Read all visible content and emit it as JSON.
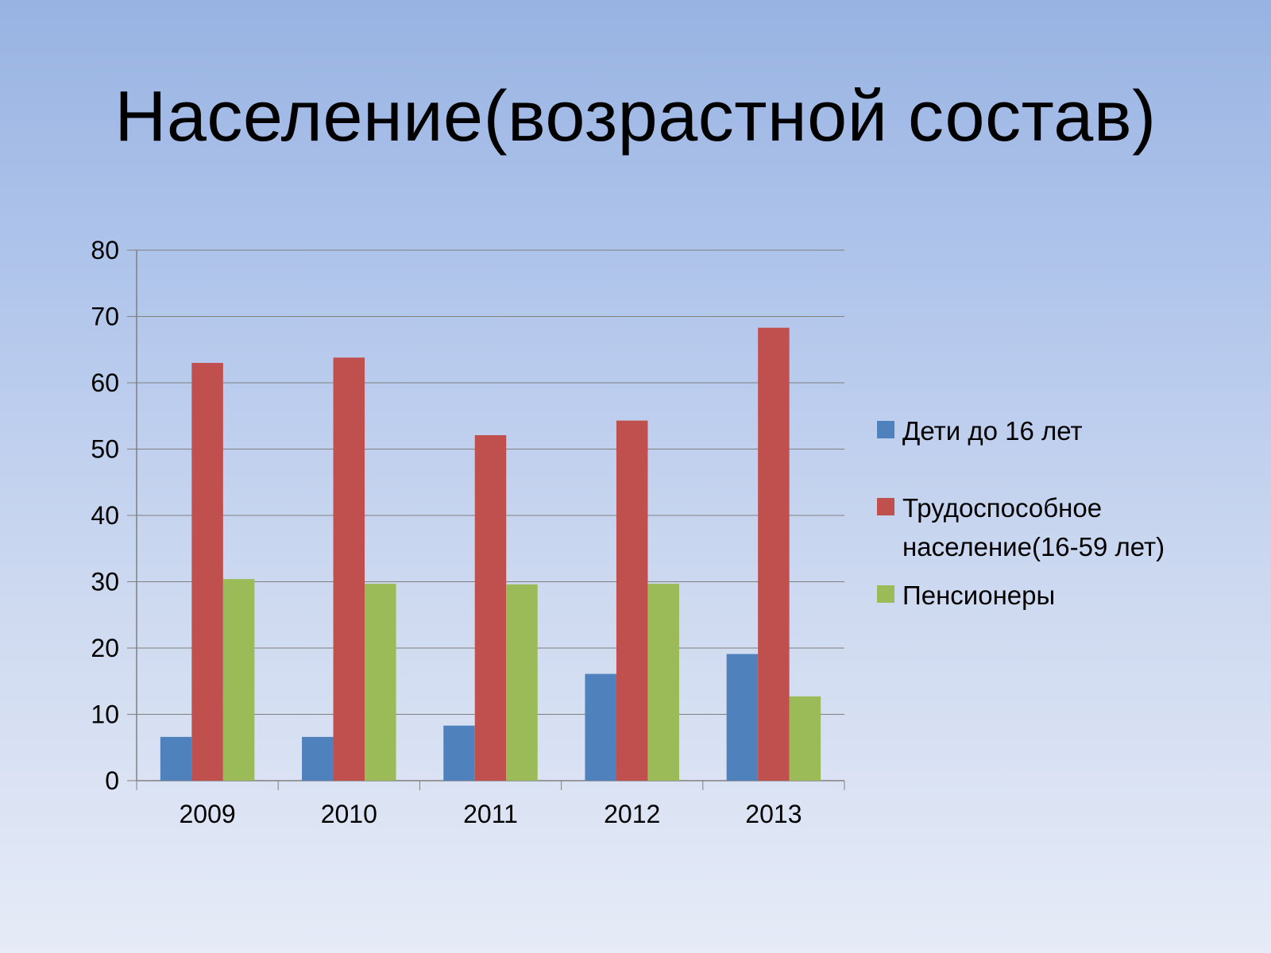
{
  "slide": {
    "title": "Население(возрастной состав)"
  },
  "chart_data": {
    "type": "bar",
    "categories": [
      "2009",
      "2010",
      "2011",
      "2012",
      "2013"
    ],
    "series": [
      {
        "name": "Дети до 16 лет",
        "color": "#4f81bd",
        "values": [
          6.6,
          6.6,
          8.3,
          16.1,
          19.1
        ]
      },
      {
        "name": "Трудоспособное население(16-59 лет)",
        "color": "#c0504d",
        "values": [
          63.0,
          63.8,
          52.1,
          54.3,
          68.3
        ]
      },
      {
        "name": "Пенсионеры",
        "color": "#9bbb59",
        "values": [
          30.4,
          29.7,
          29.6,
          29.7,
          12.7
        ]
      }
    ],
    "ylim": [
      0,
      80
    ],
    "yticks": [
      "0",
      "10",
      "20",
      "30",
      "40",
      "50",
      "60",
      "70",
      "80"
    ],
    "grid": true,
    "legend_position": "right"
  }
}
